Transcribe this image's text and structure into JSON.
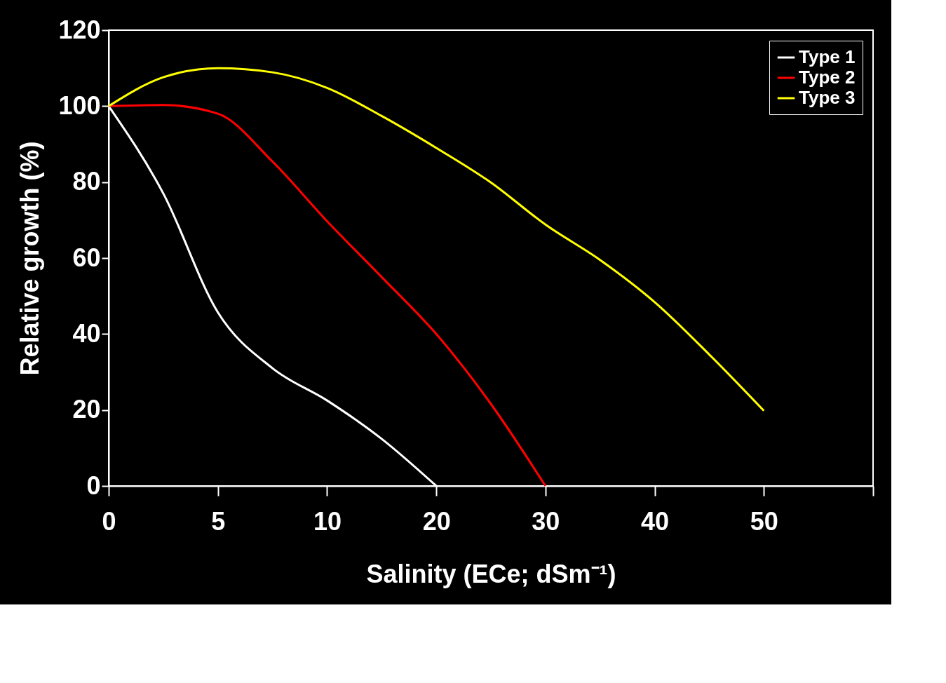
{
  "chart_data": {
    "type": "line",
    "xlabel": "Salinity (ECe; dSm⁻¹)",
    "ylabel": "Relative growth (%)",
    "categories": [
      "0",
      null,
      "5",
      null,
      "10",
      null,
      "20",
      null,
      "30",
      null,
      "40",
      null,
      "50",
      null,
      null
    ],
    "series": [
      {
        "name": "Type 1",
        "color": "#ffffff",
        "values": [
          100,
          77,
          45.7,
          31,
          22.5,
          12.4,
          0,
          null,
          null,
          null,
          null,
          null,
          null,
          null,
          null
        ]
      },
      {
        "name": "Type 2",
        "color": "#ff0000",
        "values": [
          100,
          100.3,
          98,
          85.4,
          69.7,
          55,
          40,
          21.6,
          0,
          null,
          null,
          null,
          null,
          null,
          null
        ]
      },
      {
        "name": "Type 3",
        "color": "#ffff00",
        "values": [
          100,
          107.6,
          110,
          108.9,
          104.8,
          97.4,
          89,
          79.9,
          68.8,
          59.5,
          48.4,
          34.6,
          19.8,
          null,
          null
        ]
      }
    ],
    "ylim": [
      0,
      120
    ],
    "yticks": [
      0,
      20,
      40,
      60,
      80,
      100,
      120
    ],
    "grid": false,
    "legend": "top right",
    "marker": "none",
    "line_style": "solid"
  }
}
